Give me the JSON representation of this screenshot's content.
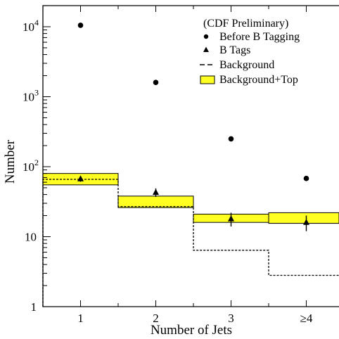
{
  "chart_data": {
    "type": "scatter",
    "title": "",
    "annotation": "(CDF Preliminary)",
    "xlabel": "Number of Jets",
    "ylabel": "Number",
    "x_scale": "category",
    "y_scale": "log",
    "ylim": [
      1,
      20000
    ],
    "categories": [
      "1",
      "2",
      "3",
      "≥4"
    ],
    "y_ticks": [
      {
        "value": 1,
        "base": "1",
        "exp": ""
      },
      {
        "value": 10,
        "base": "10",
        "exp": ""
      },
      {
        "value": 100,
        "base": "10",
        "exp": "2"
      },
      {
        "value": 1000,
        "base": "10",
        "exp": "3"
      },
      {
        "value": 10000,
        "base": "10",
        "exp": "4"
      }
    ],
    "legend": {
      "placement": "top-right",
      "entries": [
        {
          "label": "Before B Tagging",
          "marker": "circle"
        },
        {
          "label": "B Tags",
          "marker": "triangle"
        },
        {
          "label": "Background",
          "marker": "dashed-line"
        },
        {
          "label": "Background+Top",
          "marker": "yellow-box"
        }
      ]
    },
    "series": [
      {
        "name": "Before B Tagging",
        "style": "circle",
        "values": [
          10500,
          1600,
          250,
          68
        ],
        "errors": [
          0,
          0,
          0,
          5
        ]
      },
      {
        "name": "B Tags",
        "style": "triangle",
        "values": [
          67,
          43,
          18,
          16
        ],
        "errors": [
          6,
          6,
          4,
          4
        ]
      },
      {
        "name": "Background",
        "style": "dashed-step",
        "values": [
          66,
          27,
          6.4,
          2.8
        ]
      },
      {
        "name": "Background+Top",
        "style": "yellow-band",
        "low": [
          55,
          26,
          16,
          15.5
        ],
        "high": [
          80,
          38,
          21,
          22
        ]
      }
    ],
    "colors": {
      "band": "#ffff22",
      "ink": "#000000"
    }
  }
}
